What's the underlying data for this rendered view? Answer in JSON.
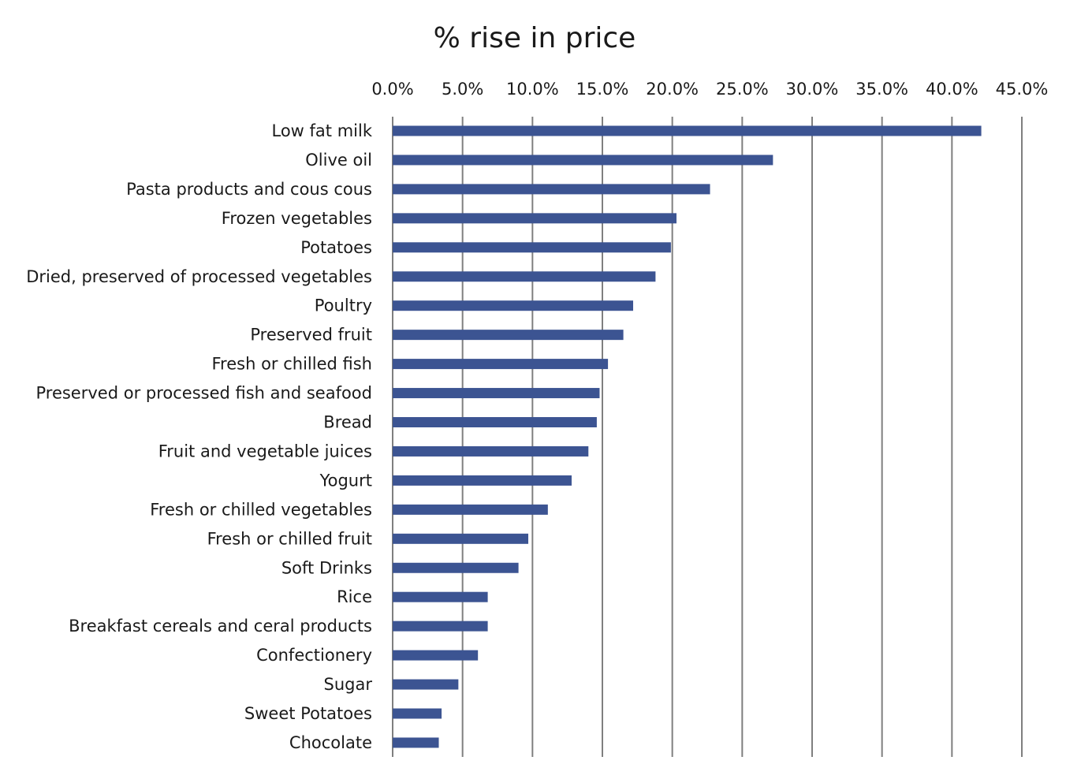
{
  "chart_data": {
    "type": "bar",
    "orientation": "horizontal",
    "title": "% rise in price",
    "xlabel": "",
    "ylabel": "",
    "xlim": [
      0,
      45
    ],
    "tick_values": [
      0,
      5,
      10,
      15,
      20,
      25,
      30,
      35,
      40,
      45
    ],
    "tick_labels": [
      "0.0%",
      "5.0%",
      "10.0%",
      "15.0%",
      "20.0%",
      "25.0%",
      "30.0%",
      "35.0%",
      "40.0%",
      "45.0%"
    ],
    "tick_position": "top",
    "grid": true,
    "bar_color": "#3C5492",
    "grid_color": "#7f7f7f",
    "categories": [
      "Low fat milk",
      "Olive oil",
      "Pasta products and cous cous",
      "Frozen vegetables",
      "Potatoes",
      "Dried, preserved of processed vegetables",
      "Poultry",
      "Preserved fruit",
      "Fresh or chilled fish",
      "Preserved or processed fish and seafood",
      "Bread",
      "Fruit and vegetable juices",
      "Yogurt",
      "Fresh or chilled vegetables",
      "Fresh or chilled fruit",
      "Soft Drinks",
      "Rice",
      "Breakfast cereals and ceral products",
      "Confectionery",
      "Sugar",
      "Sweet Potatoes",
      "Chocolate"
    ],
    "values": [
      42.1,
      27.2,
      22.7,
      20.3,
      19.9,
      18.8,
      17.2,
      16.5,
      15.4,
      14.8,
      14.6,
      14.0,
      12.8,
      11.1,
      9.7,
      9.0,
      6.8,
      6.8,
      6.1,
      4.7,
      3.5,
      3.3
    ]
  }
}
